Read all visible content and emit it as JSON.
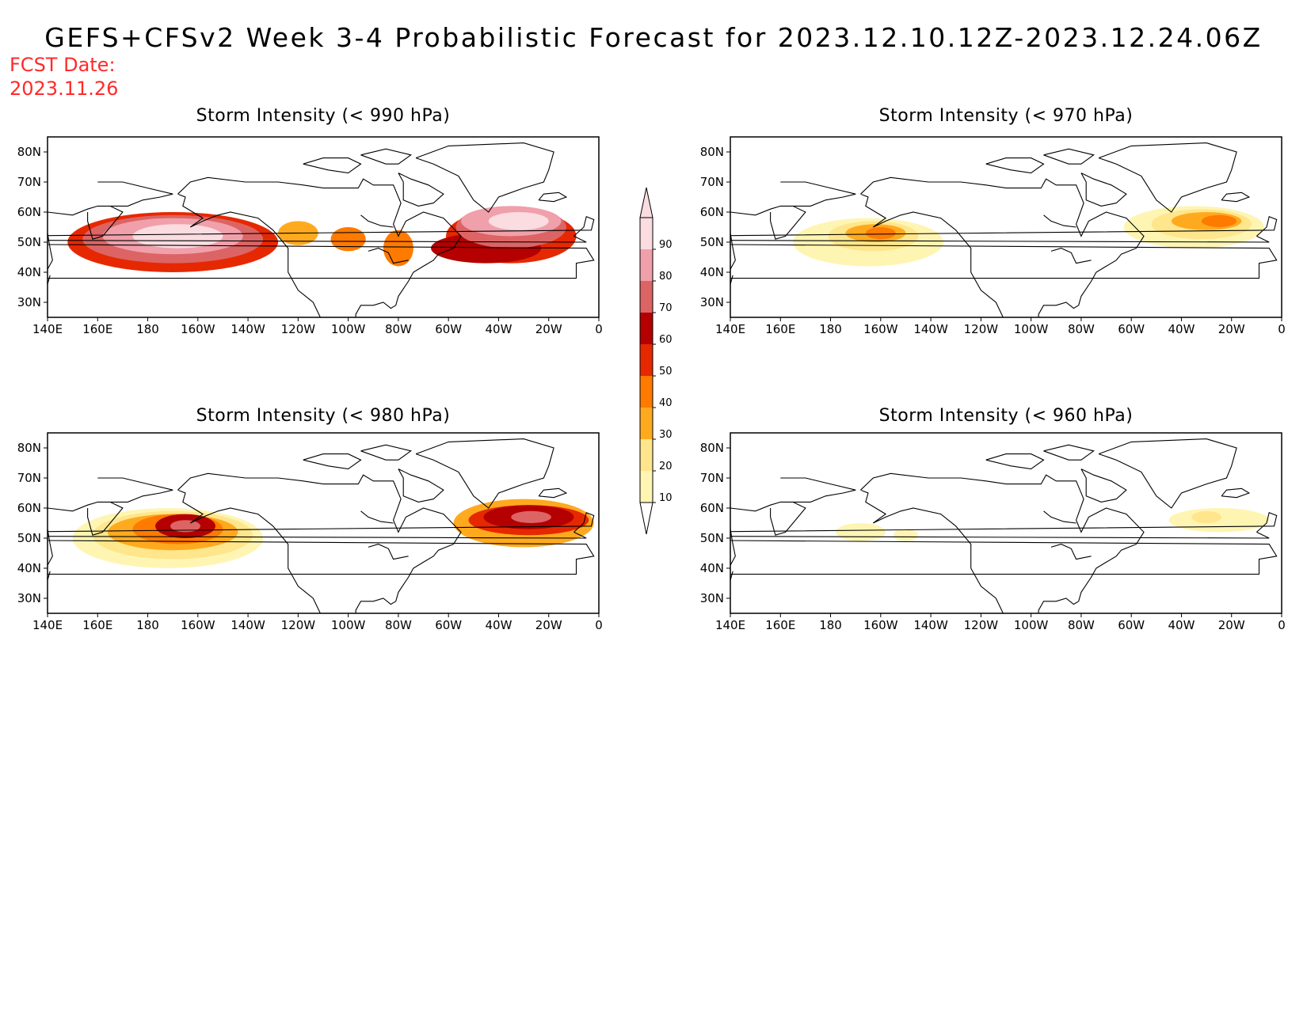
{
  "title": "GEFS+CFSv2 Week 3-4 Probabilistic Forecast for 2023.12.10.12Z-2023.12.24.06Z",
  "fcst_label": "FCST Date:",
  "fcst_value": "2023.11.26",
  "lon_ticks": [
    "140E",
    "160E",
    "180",
    "160W",
    "140W",
    "120W",
    "100W",
    "80W",
    "60W",
    "40W",
    "20W",
    "0"
  ],
  "lat_ticks": [
    "80N",
    "70N",
    "60N",
    "50N",
    "40N",
    "30N"
  ],
  "colorbar": {
    "levels": [
      "10",
      "20",
      "30",
      "40",
      "50",
      "60",
      "70",
      "80",
      "90"
    ],
    "colors": [
      "#fff5b3",
      "#ffe68c",
      "#ffaa1e",
      "#ff7a00",
      "#e62800",
      "#b40000",
      "#dc6464",
      "#f0a0aa",
      "#fadce1"
    ]
  },
  "panels": [
    {
      "title": "Storm Intensity (< 990 hPa)",
      "blobs": [
        {
          "lon": -170,
          "lat": 50,
          "rx": 42,
          "ry": 10,
          "level": 4
        },
        {
          "lon": -170,
          "lat": 51,
          "rx": 36,
          "ry": 8,
          "level": 6
        },
        {
          "lon": -170,
          "lat": 52,
          "rx": 28,
          "ry": 6,
          "level": 7
        },
        {
          "lon": -168,
          "lat": 52,
          "rx": 18,
          "ry": 4,
          "level": 8
        },
        {
          "lon": -120,
          "lat": 53,
          "rx": 8,
          "ry": 4,
          "level": 2
        },
        {
          "lon": -100,
          "lat": 51,
          "rx": 7,
          "ry": 4,
          "level": 3
        },
        {
          "lon": -80,
          "lat": 48,
          "rx": 6,
          "ry": 6,
          "level": 3
        },
        {
          "lon": -35,
          "lat": 52,
          "rx": 26,
          "ry": 9,
          "level": 4
        },
        {
          "lon": -45,
          "lat": 48,
          "rx": 22,
          "ry": 5,
          "level": 5
        },
        {
          "lon": -35,
          "lat": 55,
          "rx": 22,
          "ry": 7,
          "level": 6
        },
        {
          "lon": -35,
          "lat": 57,
          "rx": 20,
          "ry": 5,
          "level": 7
        },
        {
          "lon": -32,
          "lat": 57,
          "rx": 12,
          "ry": 3,
          "level": 8
        }
      ]
    },
    {
      "title": "Storm Intensity (< 970 hPa)",
      "blobs": [
        {
          "lon": -165,
          "lat": 50,
          "rx": 30,
          "ry": 8,
          "level": 0
        },
        {
          "lon": -163,
          "lat": 52,
          "rx": 18,
          "ry": 5,
          "level": 1
        },
        {
          "lon": -162,
          "lat": 53,
          "rx": 12,
          "ry": 3,
          "level": 2
        },
        {
          "lon": -160,
          "lat": 53,
          "rx": 6,
          "ry": 2,
          "level": 3
        },
        {
          "lon": -35,
          "lat": 55,
          "rx": 28,
          "ry": 7,
          "level": 0
        },
        {
          "lon": -32,
          "lat": 56,
          "rx": 20,
          "ry": 5,
          "level": 1
        },
        {
          "lon": -30,
          "lat": 57,
          "rx": 14,
          "ry": 3,
          "level": 2
        },
        {
          "lon": -25,
          "lat": 57,
          "rx": 7,
          "ry": 2,
          "level": 3
        }
      ]
    },
    {
      "title": "Storm Intensity (< 980 hPa)",
      "blobs": [
        {
          "lon": -172,
          "lat": 50,
          "rx": 38,
          "ry": 10,
          "level": 0
        },
        {
          "lon": -170,
          "lat": 51,
          "rx": 32,
          "ry": 8,
          "level": 1
        },
        {
          "lon": -170,
          "lat": 52,
          "rx": 26,
          "ry": 6,
          "level": 2
        },
        {
          "lon": -168,
          "lat": 53,
          "rx": 18,
          "ry": 5,
          "level": 3
        },
        {
          "lon": -165,
          "lat": 54,
          "rx": 12,
          "ry": 4,
          "level": 5
        },
        {
          "lon": -165,
          "lat": 54,
          "rx": 6,
          "ry": 2,
          "level": 6
        },
        {
          "lon": -30,
          "lat": 55,
          "rx": 28,
          "ry": 8,
          "level": 2
        },
        {
          "lon": -28,
          "lat": 56,
          "rx": 24,
          "ry": 5,
          "level": 4
        },
        {
          "lon": -28,
          "lat": 57,
          "rx": 18,
          "ry": 4,
          "level": 5
        },
        {
          "lon": -27,
          "lat": 57,
          "rx": 8,
          "ry": 2,
          "level": 6
        }
      ]
    },
    {
      "title": "Storm Intensity (< 960 hPa)",
      "blobs": [
        {
          "lon": -168,
          "lat": 52,
          "rx": 10,
          "ry": 3,
          "level": 0
        },
        {
          "lon": -150,
          "lat": 51,
          "rx": 5,
          "ry": 2,
          "level": 0
        },
        {
          "lon": -25,
          "lat": 56,
          "rx": 20,
          "ry": 4,
          "level": 0
        },
        {
          "lon": -30,
          "lat": 57,
          "rx": 6,
          "ry": 2,
          "level": 1
        }
      ]
    }
  ]
}
